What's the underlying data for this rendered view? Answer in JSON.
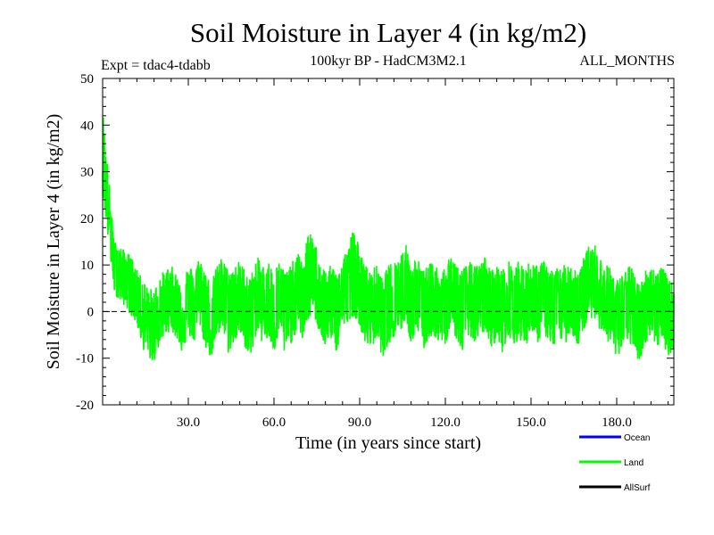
{
  "chart_data": {
    "type": "line",
    "title": "Soil Moisture in Layer 4 (in kg/m2)",
    "subtitle_left": "Expt = tdac4-tdabb",
    "subtitle_center": "100kyr BP - HadCM3M2.1",
    "subtitle_right": "ALL_MONTHS",
    "xlabel": "Time (in years since start)",
    "ylabel": "Soil Moisture in Layer 4 (in kg/m2)",
    "xlim": [
      0,
      200
    ],
    "ylim": [
      -20,
      50
    ],
    "x_ticks": [
      30,
      60,
      90,
      120,
      150,
      180
    ],
    "x_tick_labels": [
      "30.0",
      "60.0",
      "90.0",
      "120.0",
      "150.0",
      "180.0"
    ],
    "y_ticks": [
      -20,
      -10,
      0,
      10,
      20,
      30,
      40,
      50
    ],
    "y_tick_labels": [
      "-20",
      "-10",
      "0",
      "10",
      "20",
      "30",
      "40",
      "50"
    ],
    "zero_line": true,
    "legend_position": "bottom-right",
    "series": [
      {
        "name": "Ocean",
        "color": "#0000ff",
        "values": []
      },
      {
        "name": "Land",
        "color": "#00ff00",
        "x": [
          0,
          2,
          4,
          6,
          8,
          10,
          12,
          14,
          16,
          18,
          20,
          22,
          24,
          26,
          28,
          30,
          32,
          34,
          36,
          38,
          40,
          42,
          44,
          46,
          48,
          50,
          52,
          54,
          56,
          58,
          60,
          62,
          64,
          66,
          68,
          70,
          72,
          74,
          76,
          78,
          80,
          82,
          84,
          86,
          88,
          90,
          92,
          94,
          96,
          98,
          100,
          102,
          104,
          106,
          108,
          110,
          112,
          114,
          116,
          118,
          120,
          122,
          124,
          126,
          128,
          130,
          132,
          134,
          136,
          138,
          140,
          142,
          144,
          146,
          148,
          150,
          152,
          154,
          156,
          158,
          160,
          162,
          164,
          166,
          168,
          170,
          172,
          174,
          176,
          178,
          180,
          182,
          184,
          186,
          188,
          190,
          192,
          194,
          196,
          198,
          200
        ],
        "values": [
          35,
          22,
          12,
          9,
          8,
          6,
          4,
          1,
          -2,
          -5,
          0,
          2,
          4,
          1,
          -2,
          3,
          1,
          5,
          0,
          -3,
          2,
          4,
          -1,
          1,
          3,
          0,
          -2,
          4,
          1,
          2,
          -1,
          3,
          -2,
          1,
          4,
          2,
          7,
          8,
          3,
          0,
          2,
          -1,
          4,
          6,
          9,
          5,
          1,
          0,
          2,
          -3,
          1,
          2,
          3,
          6,
          1,
          4,
          -1,
          2,
          3,
          0,
          1,
          4,
          2,
          -1,
          3,
          1,
          2,
          4,
          0,
          2,
          -1,
          3,
          1,
          2,
          0,
          4,
          1,
          3,
          2,
          -1,
          2,
          1,
          4,
          0,
          3,
          6,
          9,
          4,
          2,
          1,
          -3,
          0,
          2,
          -1,
          -4,
          1,
          3,
          0,
          2,
          -2,
          -1
        ],
        "envelope_max": [
          44,
          30,
          15,
          14,
          13,
          12,
          9,
          7,
          5,
          5,
          8,
          9,
          10,
          8,
          7,
          10,
          9,
          12,
          9,
          6,
          10,
          12,
          9,
          10,
          11,
          9,
          8,
          12,
          10,
          11,
          9,
          11,
          9,
          10,
          13,
          11,
          17,
          16,
          11,
          9,
          10,
          9,
          12,
          14,
          19,
          13,
          10,
          9,
          10,
          7,
          10,
          11,
          12,
          15,
          10,
          12,
          9,
          10,
          11,
          9,
          10,
          12,
          11,
          9,
          11,
          10,
          10,
          12,
          9,
          10,
          9,
          11,
          10,
          11,
          9,
          12,
          10,
          11,
          10,
          9,
          10,
          10,
          12,
          9,
          11,
          14,
          15,
          12,
          10,
          10,
          7,
          8,
          10,
          9,
          6,
          9,
          10,
          9,
          10,
          7,
          6
        ],
        "envelope_min": [
          25,
          15,
          4,
          2,
          1,
          -1,
          -3,
          -8,
          -10,
          -11,
          -7,
          -5,
          -4,
          -6,
          -9,
          -5,
          -7,
          -3,
          -8,
          -10,
          -6,
          -4,
          -9,
          -7,
          -5,
          -8,
          -10,
          -4,
          -7,
          -6,
          -9,
          -5,
          -10,
          -7,
          -4,
          -6,
          -2,
          -1,
          -5,
          -8,
          -6,
          -9,
          -4,
          -2,
          -1,
          -3,
          -7,
          -8,
          -6,
          -10,
          -7,
          -6,
          -5,
          -2,
          -7,
          -4,
          -9,
          -6,
          -5,
          -8,
          -7,
          -4,
          -6,
          -9,
          -5,
          -7,
          -6,
          -4,
          -8,
          -6,
          -9,
          -5,
          -7,
          -6,
          -8,
          -4,
          -7,
          -5,
          -6,
          -9,
          -6,
          -7,
          -4,
          -8,
          -5,
          -2,
          -1,
          -4,
          -6,
          -7,
          -11,
          -8,
          -6,
          -9,
          -11,
          -7,
          -5,
          -8,
          -6,
          -10,
          -8
        ]
      },
      {
        "name": "AllSurf",
        "color": "#000000",
        "values": []
      }
    ]
  }
}
